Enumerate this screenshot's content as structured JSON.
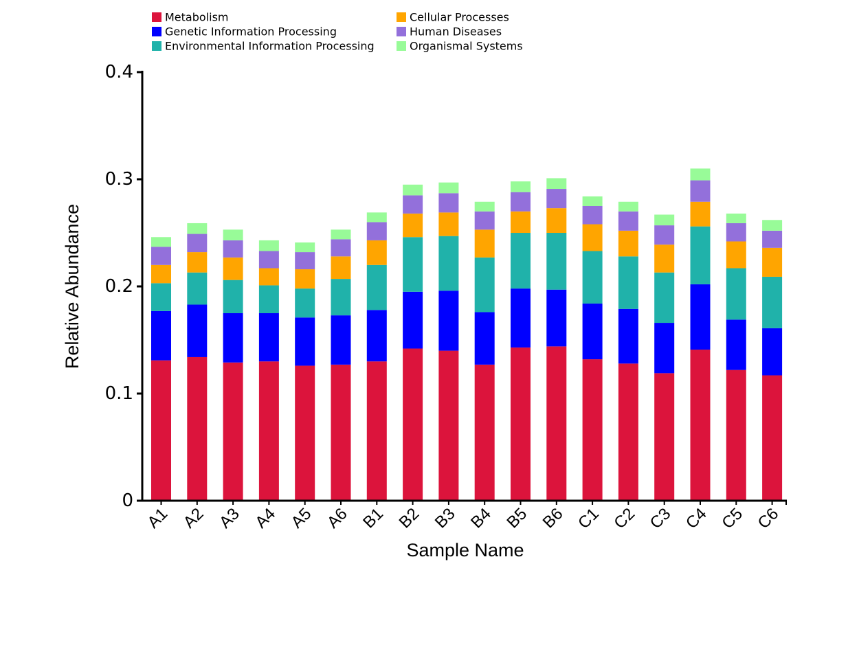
{
  "chart_data": {
    "type": "bar",
    "stacked": true,
    "title": "",
    "xlabel": "Sample Name",
    "ylabel": "Relative Abundance",
    "ylim": [
      0,
      0.4
    ],
    "yticks": [
      {
        "value": 0,
        "label": "0"
      },
      {
        "value": 0.1,
        "label": "0.1"
      },
      {
        "value": 0.2,
        "label": "0.2"
      },
      {
        "value": 0.3,
        "label": "0.3"
      },
      {
        "value": 0.4,
        "label": "0.4"
      }
    ],
    "grid": false,
    "legend_position": "top",
    "categories": [
      "A1",
      "A2",
      "A3",
      "A4",
      "A5",
      "A6",
      "B1",
      "B2",
      "B3",
      "B4",
      "B5",
      "B6",
      "C1",
      "C2",
      "C3",
      "C4",
      "C5",
      "C6"
    ],
    "series": [
      {
        "name": "Metabolism",
        "color": "#dc143c",
        "values": [
          0.131,
          0.134,
          0.129,
          0.13,
          0.126,
          0.127,
          0.13,
          0.142,
          0.14,
          0.127,
          0.143,
          0.144,
          0.132,
          0.128,
          0.119,
          0.141,
          0.122,
          0.117
        ]
      },
      {
        "name": "Genetic Information Processing",
        "color": "#0000ff",
        "values": [
          0.046,
          0.049,
          0.046,
          0.045,
          0.045,
          0.046,
          0.048,
          0.053,
          0.056,
          0.049,
          0.055,
          0.053,
          0.052,
          0.051,
          0.047,
          0.061,
          0.047,
          0.044
        ]
      },
      {
        "name": "Environmental Information Processing",
        "color": "#20b2aa",
        "values": [
          0.026,
          0.03,
          0.031,
          0.026,
          0.027,
          0.034,
          0.042,
          0.051,
          0.051,
          0.051,
          0.052,
          0.053,
          0.049,
          0.049,
          0.047,
          0.054,
          0.048,
          0.048
        ]
      },
      {
        "name": "Cellular Processes",
        "color": "#ffa500",
        "values": [
          0.017,
          0.019,
          0.021,
          0.016,
          0.018,
          0.021,
          0.023,
          0.022,
          0.022,
          0.026,
          0.02,
          0.023,
          0.025,
          0.024,
          0.026,
          0.023,
          0.025,
          0.027
        ]
      },
      {
        "name": "Human Diseases",
        "color": "#9370db",
        "values": [
          0.017,
          0.017,
          0.016,
          0.016,
          0.016,
          0.016,
          0.017,
          0.017,
          0.018,
          0.017,
          0.018,
          0.018,
          0.017,
          0.018,
          0.018,
          0.02,
          0.017,
          0.016
        ]
      },
      {
        "name": "Organismal Systems",
        "color": "#98fb98",
        "values": [
          0.009,
          0.01,
          0.01,
          0.01,
          0.009,
          0.009,
          0.009,
          0.01,
          0.01,
          0.009,
          0.01,
          0.01,
          0.009,
          0.009,
          0.01,
          0.011,
          0.009,
          0.01
        ]
      }
    ]
  }
}
